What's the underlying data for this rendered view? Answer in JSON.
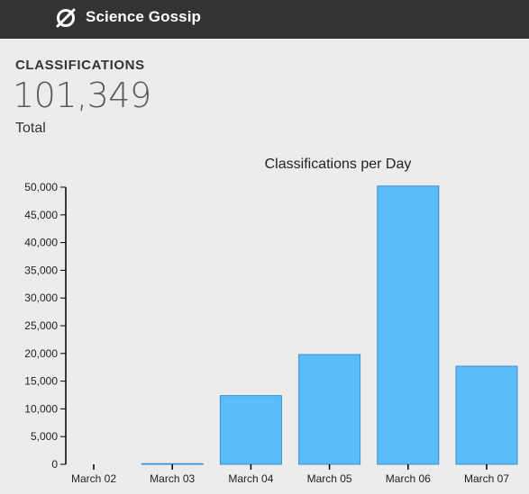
{
  "header": {
    "app_title": "Science Gossip",
    "logo_icon": "science-gossip-logo-icon",
    "background_color": "#333333"
  },
  "stats": {
    "heading": "CLASSIFICATIONS",
    "total_value": "101,349",
    "total_label": "Total"
  },
  "chart_data": {
    "type": "bar",
    "title": "Classifications per Day",
    "xlabel": "",
    "ylabel": "",
    "categories": [
      "March 02",
      "March 03",
      "March 04",
      "March 05",
      "March 06",
      "March 07"
    ],
    "values": [
      0,
      120,
      12400,
      19800,
      50200,
      17700
    ],
    "ylim": [
      0,
      50000
    ],
    "yticks": [
      0,
      5000,
      10000,
      15000,
      20000,
      25000,
      30000,
      35000,
      40000,
      45000,
      50000
    ],
    "ytick_labels": [
      "0",
      "5,000",
      "10,000",
      "15,000",
      "20,000",
      "25,000",
      "30,000",
      "35,000",
      "40,000",
      "45,000",
      "50,000"
    ],
    "bar_color": "#5bbcfa",
    "bar_border_color": "#3a8fd0",
    "grid": false
  }
}
